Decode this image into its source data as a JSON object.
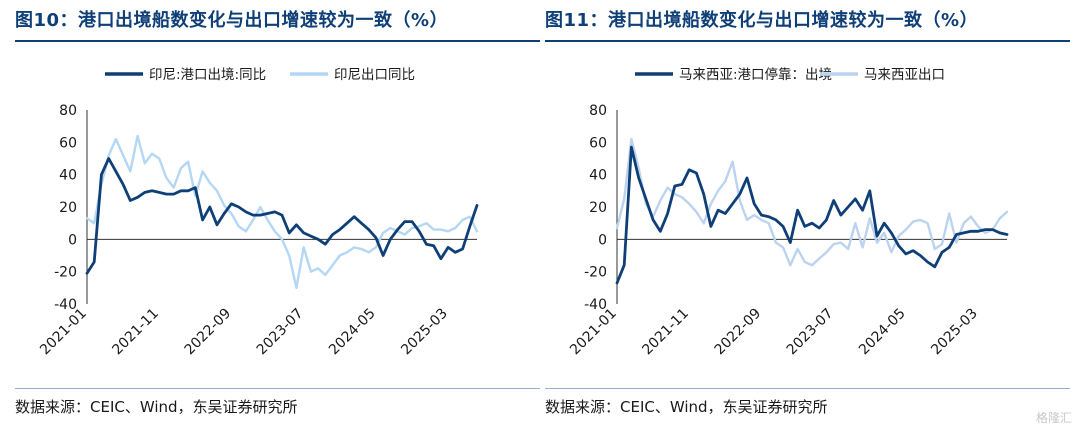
{
  "watermark": "格隆汇",
  "chart_data": [
    {
      "type": "line",
      "title": "图10：港口出境船数变化与出口增速较为一致（%）",
      "source": "数据来源：CEIC、Wind，东吴证券研究所",
      "ylim": [
        -40,
        80
      ],
      "yticks": [
        -40,
        -20,
        0,
        20,
        40,
        60,
        80
      ],
      "x_tick_labels": [
        "2021-01",
        "2021-11",
        "2022-09",
        "2023-07",
        "2024-05",
        "2025-03"
      ],
      "x_tick_index": [
        0,
        10,
        20,
        30,
        40,
        50
      ],
      "n_points": 55,
      "legend_position": "top",
      "series": [
        {
          "name": "印尼:港口出境:同比",
          "color": "#0f3f77",
          "values": [
            -21,
            -14,
            40,
            50,
            42,
            34,
            24,
            26,
            29,
            30,
            29,
            28,
            28,
            30,
            30,
            32,
            12,
            20,
            9,
            16,
            22,
            20,
            17,
            15,
            15,
            16,
            17,
            15,
            4,
            9,
            4,
            2,
            0,
            -3,
            3,
            6,
            10,
            14,
            10,
            6,
            1,
            -10,
            0,
            6,
            11,
            11,
            5,
            -3,
            -4,
            -12,
            -5,
            -8,
            -6,
            8,
            21
          ]
        },
        {
          "name": "印尼出口同比",
          "color": "#b3d7f4",
          "values": [
            13,
            10,
            34,
            52,
            62,
            52,
            42,
            64,
            47,
            53,
            50,
            38,
            32,
            44,
            48,
            27,
            42,
            35,
            30,
            21,
            16,
            8,
            5,
            12,
            20,
            12,
            5,
            0,
            -10,
            -30,
            -5,
            -20,
            -18,
            -22,
            -16,
            -10,
            -8,
            -5,
            -6,
            -8,
            -5,
            4,
            7,
            5,
            3,
            7,
            8,
            10,
            6,
            6,
            5,
            7,
            12,
            14,
            5
          ]
        }
      ]
    },
    {
      "type": "line",
      "title": "图11：港口出境船数变化与出口增速较为一致（%）",
      "source": "数据来源：CEIC、Wind，东吴证券研究所",
      "ylim": [
        -40,
        80
      ],
      "yticks": [
        -40,
        -20,
        0,
        20,
        40,
        60,
        80
      ],
      "x_tick_labels": [
        "2021-01",
        "2021-11",
        "2022-09",
        "2023-07",
        "2024-05",
        "2025-03"
      ],
      "x_tick_index": [
        0,
        10,
        20,
        30,
        40,
        50
      ],
      "n_points": 55,
      "legend_position": "top",
      "series": [
        {
          "name": "马来西亚:港口停靠：出境",
          "color": "#0f3f77",
          "values": [
            -27,
            -16,
            57,
            38,
            25,
            12,
            5,
            16,
            33,
            34,
            43,
            41,
            28,
            8,
            18,
            16,
            22,
            28,
            38,
            22,
            15,
            14,
            12,
            8,
            -2,
            18,
            8,
            10,
            7,
            12,
            24,
            15,
            20,
            25,
            18,
            30,
            2,
            10,
            4,
            -4,
            -9,
            -7,
            -10,
            -14,
            -17,
            -8,
            -5,
            3,
            4,
            5,
            5,
            6,
            6,
            4,
            3
          ]
        },
        {
          "name": "马来西亚出口",
          "color": "#bcd3f0",
          "values": [
            7,
            25,
            62,
            44,
            22,
            14,
            24,
            32,
            28,
            26,
            22,
            17,
            10,
            22,
            30,
            36,
            48,
            24,
            12,
            15,
            12,
            10,
            -2,
            -5,
            -16,
            -6,
            -14,
            -16,
            -12,
            -8,
            -3,
            -2,
            -6,
            10,
            -5,
            13,
            -2,
            4,
            -8,
            2,
            6,
            11,
            12,
            10,
            -6,
            -3,
            16,
            -2,
            10,
            14,
            8,
            4,
            6,
            13,
            17
          ]
        }
      ]
    }
  ]
}
